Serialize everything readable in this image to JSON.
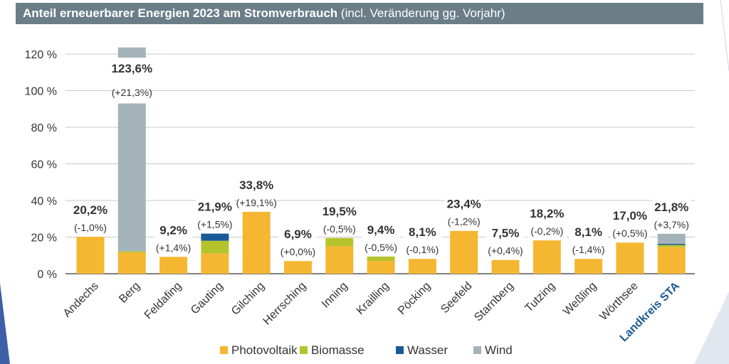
{
  "title": {
    "main": "Anteil erneuerbarer Energien 2023 am Stromverbrauch",
    "sub": " (incl. Veränderung gg. Vorjahr)"
  },
  "colors": {
    "Photovoltaik": "#f5b731",
    "Biomasse": "#b5c42c",
    "Wasser": "#1b5a96",
    "Wind": "#a4b3ba",
    "title_bg": "#6b7e87",
    "highlight_label": "#1b5a96"
  },
  "chart_data": {
    "type": "bar",
    "stacked": true,
    "categories": [
      "Andechs",
      "Berg",
      "Feldafing",
      "Gauting",
      "Gilching",
      "Herrsching",
      "Inning",
      "Krailling",
      "Pöcking",
      "Seefeld",
      "Starnberg",
      "Tutzing",
      "Weßling",
      "Wörthsee",
      "Landkreis STA"
    ],
    "series": [
      {
        "name": "Photovoltaik",
        "values": [
          20.2,
          11.5,
          9.2,
          11.0,
          33.8,
          6.9,
          15.0,
          7.0,
          8.1,
          23.4,
          7.5,
          18.2,
          8.1,
          17.0,
          14.5
        ]
      },
      {
        "name": "Biomasse",
        "values": [
          0,
          0.8,
          0,
          7.0,
          0,
          0,
          4.5,
          2.4,
          0,
          0,
          0,
          0,
          0,
          0,
          1.2
        ]
      },
      {
        "name": "Wasser",
        "values": [
          0,
          0,
          0,
          3.9,
          0,
          0,
          0,
          0,
          0,
          0,
          0,
          0,
          0,
          0,
          0.6
        ]
      },
      {
        "name": "Wind",
        "values": [
          0,
          111.3,
          0,
          0,
          0,
          0,
          0,
          0,
          0,
          0,
          0,
          0,
          0,
          0,
          5.5
        ]
      }
    ],
    "total_labels": [
      "20,2%",
      "123,6%",
      "9,2%",
      "21,9%",
      "33,8%",
      "6,9%",
      "19,5%",
      "9,4%",
      "8,1%",
      "23,4%",
      "7,5%",
      "18,2%",
      "8,1%",
      "17,0%",
      "21,8%"
    ],
    "change_labels": [
      "(-1,0%)",
      "(+21,3%)",
      "(+1,4%)",
      "(+1,5%)",
      "(+19,1%)",
      "(+0,0%)",
      "(-0,5%)",
      "(-0,5%)",
      "(-0,1%)",
      "(-1,2%)",
      "(+0,4%)",
      "(-0,2%)",
      "(-1,4%)",
      "(+0,5%)",
      "(+3,7%)"
    ],
    "yticks": [
      "0 %",
      "20 %",
      "40 %",
      "60 %",
      "80 %",
      "100 %",
      "120 %"
    ],
    "ylim": [
      0,
      120
    ],
    "grid": true,
    "legend_position": "bottom",
    "xlabel": "",
    "ylabel": ""
  }
}
